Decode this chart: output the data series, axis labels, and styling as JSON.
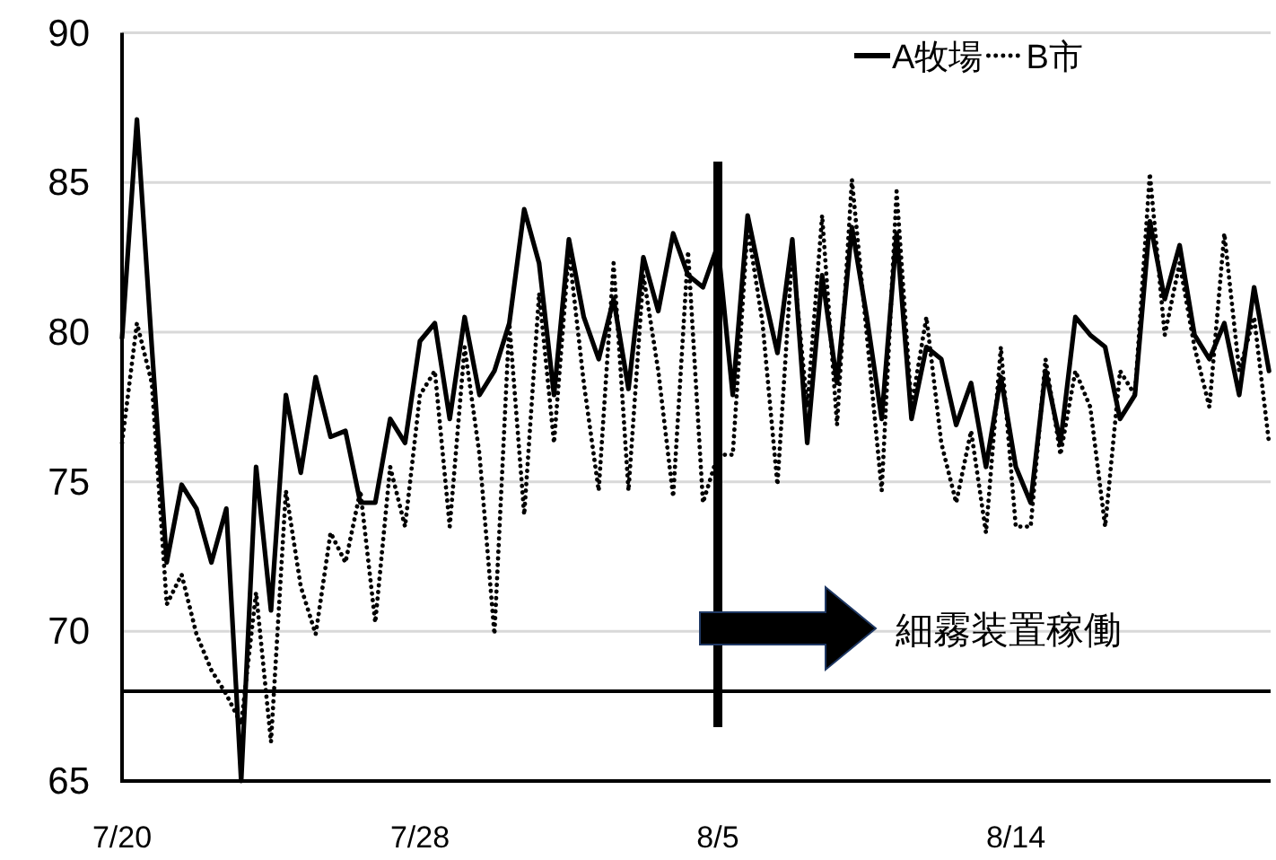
{
  "chart_data": {
    "type": "line",
    "categories": [
      "7/20",
      null,
      null,
      null,
      null,
      null,
      null,
      null,
      null,
      null,
      null,
      null,
      null,
      null,
      null,
      null,
      null,
      null,
      null,
      null,
      "7/28",
      null,
      null,
      null,
      null,
      null,
      null,
      null,
      null,
      null,
      null,
      null,
      null,
      null,
      null,
      null,
      null,
      null,
      null,
      null,
      "8/5",
      null,
      null,
      null,
      null,
      null,
      null,
      null,
      null,
      null,
      null,
      null,
      null,
      null,
      null,
      null,
      null,
      null,
      null,
      null,
      "8/14",
      null,
      null,
      null,
      null,
      null,
      null,
      null,
      null,
      null,
      null,
      null,
      null,
      null,
      null,
      null,
      null,
      null
    ],
    "series": [
      {
        "name": "A牧場",
        "color": "#000000",
        "line_style": "solid",
        "values": [
          79.8,
          87.1,
          79.5,
          72.3,
          74.9,
          74.1,
          72.3,
          74.1,
          65,
          75.5,
          70.7,
          77.9,
          75.3,
          78.5,
          76.5,
          76.7,
          74.3,
          74.3,
          77.1,
          76.3,
          79.7,
          80.3,
          77.1,
          80.5,
          77.9,
          78.7,
          80.3,
          84.1,
          82.3,
          77.9,
          83.1,
          80.5,
          79.1,
          81.1,
          78.1,
          82.5,
          80.7,
          83.3,
          81.9,
          81.5,
          82.9,
          77.9,
          83.9,
          81.5,
          79.3,
          83.1,
          76.3,
          81.9,
          78.3,
          83.5,
          80.5,
          77.1,
          83.3,
          77.1,
          79.5,
          79.1,
          76.9,
          78.3,
          75.5,
          78.5,
          75.5,
          74.3,
          78.7,
          76.3,
          80.5,
          79.9,
          79.5,
          77.1,
          77.9,
          83.7,
          81.1,
          82.9,
          79.9,
          79.1,
          80.3,
          77.9,
          81.5,
          78.7
        ]
      },
      {
        "name": "B市",
        "color": "#000000",
        "line_style": "dotted",
        "values": [
          76.3,
          80.3,
          78.3,
          70.9,
          71.9,
          69.9,
          68.7,
          67.9,
          66.9,
          71.3,
          66.3,
          74.7,
          71.5,
          69.9,
          73.3,
          72.3,
          74.7,
          70.3,
          75.5,
          73.5,
          77.9,
          78.7,
          73.5,
          79.5,
          75.9,
          69.9,
          80.3,
          73.9,
          81.3,
          76.3,
          82.7,
          78.3,
          74.7,
          82.3,
          74.7,
          81.9,
          78.7,
          74.5,
          82.7,
          74.3,
          75.9,
          75.9,
          83.5,
          80.3,
          74.9,
          82.7,
          77.5,
          83.9,
          76.9,
          85.1,
          79.9,
          74.7,
          84.7,
          77.5,
          80.5,
          76.3,
          74.3,
          76.7,
          73.3,
          79.5,
          73.5,
          73.5,
          79.1,
          75.9,
          78.7,
          77.5,
          73.5,
          78.7,
          77.9,
          85.3,
          79.9,
          82.3,
          79.5,
          77.5,
          83.3,
          78.7,
          80.5,
          76.3
        ]
      }
    ],
    "ylim": [
      65,
      90
    ],
    "yticks": [
      65,
      70,
      75,
      80,
      85,
      90
    ],
    "grid": "y",
    "legend": "top right",
    "ref_lines": [
      {
        "axis": "x",
        "value": "8/5",
        "color": "#000000"
      },
      {
        "axis": "y",
        "value": 68,
        "color": "#000000"
      }
    ],
    "annotations": [
      "細霧装置稼働"
    ]
  }
}
